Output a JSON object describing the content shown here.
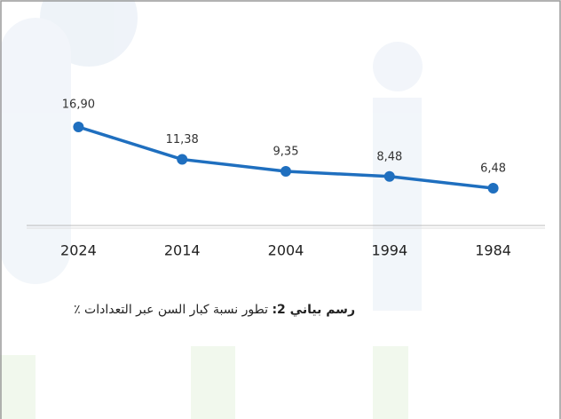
{
  "chart_data": {
    "type": "line",
    "caption_label": "رسم بياني 2:",
    "title": "تطور نسبة كبار السن عبر التعدادات ٪",
    "categories": [
      "2024",
      "2014",
      "2004",
      "1994",
      "1984"
    ],
    "series": [
      {
        "color": "#1f6fbf",
        "values": [
          16.9,
          11.38,
          9.35,
          8.48,
          6.48
        ],
        "value_labels": [
          "16,90",
          "11,38",
          "9,35",
          "8,48",
          "6,48"
        ]
      }
    ]
  }
}
